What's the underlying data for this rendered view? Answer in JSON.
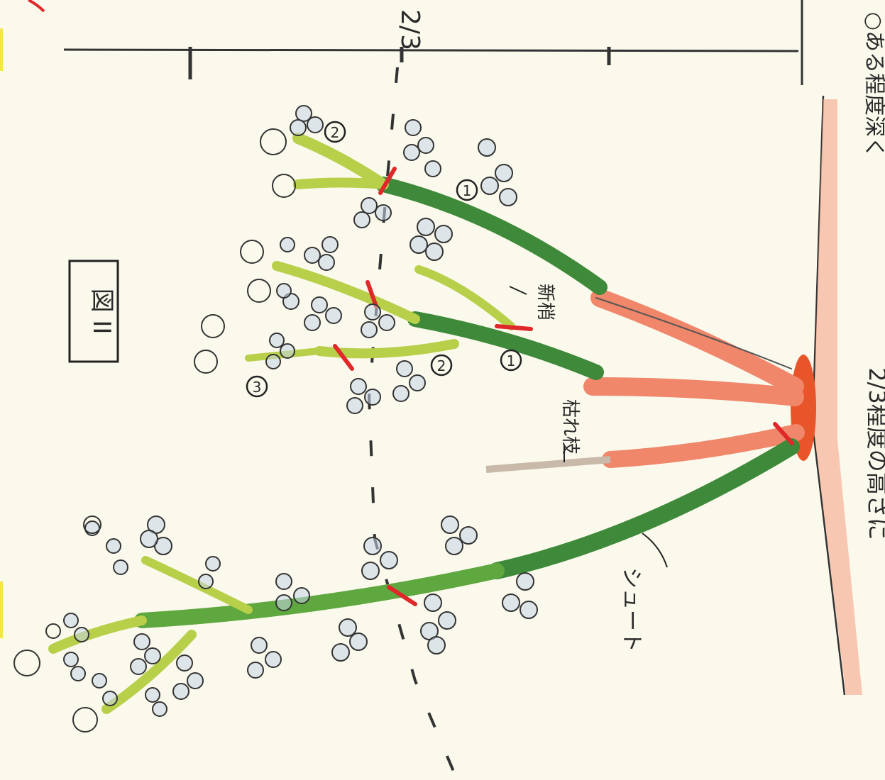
{
  "figure": {
    "title": "図 II",
    "top_label": "2/3"
  },
  "right_note": {
    "line1": "2/3程度の高さに",
    "line2": "○ある程度深く"
  },
  "callouts": {
    "shinsho": "新梢",
    "karesho": "枯れ枝",
    "shoot": "シュート",
    "n1": "1",
    "n2": "2",
    "n3": "3"
  },
  "colors": {
    "paper": "#fbf9ec",
    "cane_dark": "#3e8a3a",
    "cane_light": "#b8cf4a",
    "old_wood": "#f0866a",
    "base": "#e8552a",
    "cut_mark": "#e0282a",
    "leaf_fill": "#c6d6e6",
    "ink": "#2a2a2a"
  }
}
